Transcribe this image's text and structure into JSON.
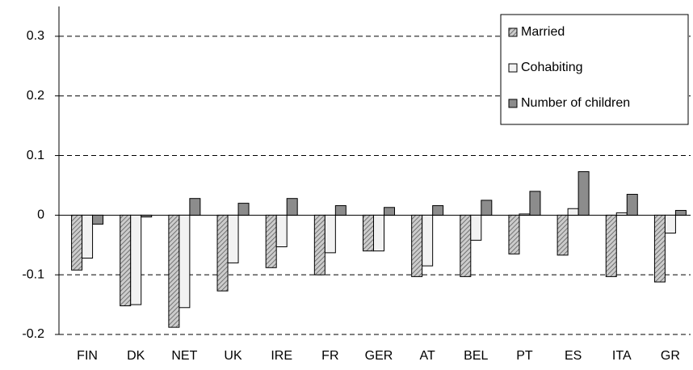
{
  "chart_data": {
    "type": "bar",
    "categories": [
      "FIN",
      "DK",
      "NET",
      "UK",
      "IRE",
      "FR",
      "GER",
      "AT",
      "BEL",
      "PT",
      "ES",
      "ITA",
      "GR"
    ],
    "series": [
      {
        "name": "Married",
        "color": "#b4b4b4",
        "values": [
          -0.092,
          -0.152,
          -0.188,
          -0.127,
          -0.088,
          -0.1,
          -0.06,
          -0.103,
          -0.103,
          -0.065,
          -0.067,
          -0.103,
          -0.112
        ]
      },
      {
        "name": "Cohabiting",
        "color": "#f2f2f2",
        "values": [
          -0.072,
          -0.15,
          -0.155,
          -0.08,
          -0.053,
          -0.063,
          -0.06,
          -0.085,
          -0.042,
          0.002,
          0.011,
          0.004,
          -0.03
        ]
      },
      {
        "name": "Number of children",
        "color": "#8c8c8c",
        "values": [
          -0.015,
          -0.003,
          0.028,
          0.02,
          0.028,
          0.016,
          0.013,
          0.016,
          0.025,
          0.04,
          0.073,
          0.035,
          0.008
        ]
      }
    ],
    "ylim": [
      -0.2,
      0.35
    ],
    "yticks": [
      -0.2,
      -0.1,
      0,
      0.1,
      0.2,
      0.3
    ],
    "grid": true
  }
}
